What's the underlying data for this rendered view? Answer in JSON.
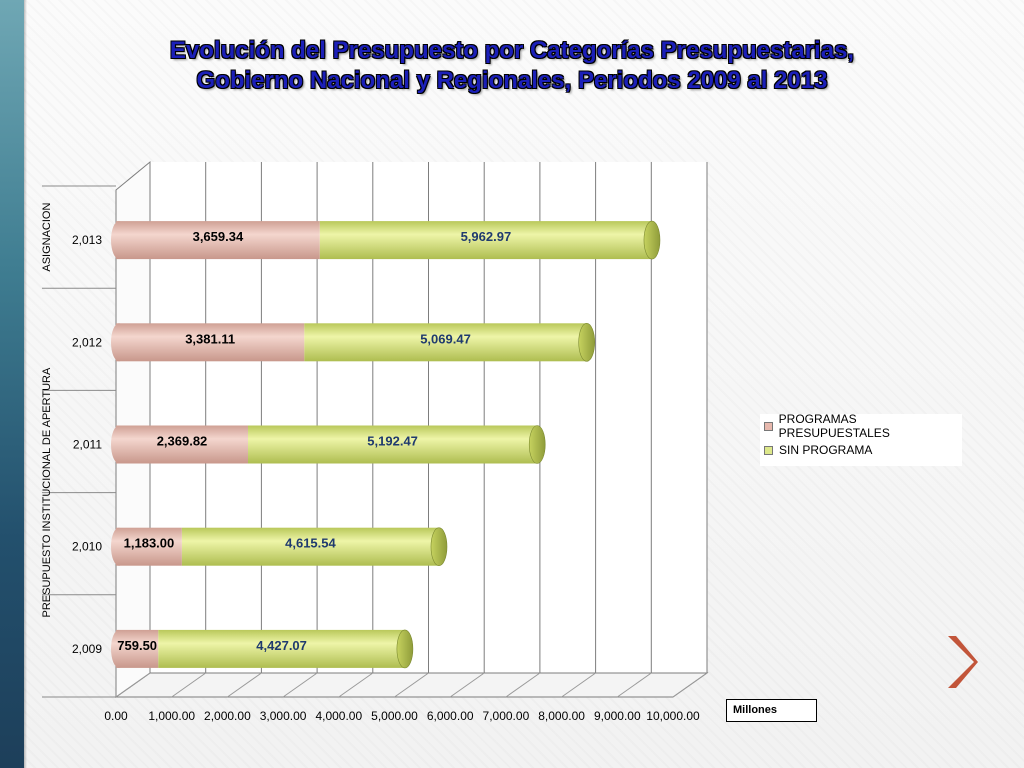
{
  "slide": {
    "title_line1": "Evolución del Presupuesto por Categorías Presupuestarias,",
    "title_line2": "Gobierno Nacional y Regionales, Periodos 2009 al 2013",
    "unit_label": "Millones",
    "next_icon": "chevron-right-icon"
  },
  "chart_data": {
    "type": "bar",
    "orientation": "horizontal",
    "stacked": true,
    "categories": [
      "2,009",
      "2,010",
      "2,011",
      "2,012",
      "2,013"
    ],
    "series": [
      {
        "name": "PROGRAMAS PRESUPUESTALES",
        "values": [
          759.5,
          1183.0,
          2369.82,
          3381.11,
          3659.34
        ],
        "labels": [
          "759.50",
          "1,183.00",
          "2,369.82",
          "3,381.11",
          "3,659.34"
        ],
        "color": "#e7b8ad",
        "label_color": "#000000"
      },
      {
        "name": "SIN PROGRAMA",
        "values": [
          4427.07,
          4615.54,
          5192.47,
          5069.47,
          5962.97
        ],
        "labels": [
          "4,427.07",
          "4,615.54",
          "5,192.47",
          "5,069.47",
          "5,962.97"
        ],
        "color": "#dde88a",
        "label_color": "#1f3a6e"
      }
    ],
    "group_labels": [
      {
        "label": "PRESUPUESTO INSTITUCIONAL DE APERTURA",
        "categories": [
          "2,009",
          "2,010",
          "2,011",
          "2,012"
        ]
      },
      {
        "label": "ASIGNACION",
        "categories": [
          "2,013"
        ]
      }
    ],
    "xaxis": {
      "ticks": [
        0,
        1000,
        2000,
        3000,
        4000,
        5000,
        6000,
        7000,
        8000,
        9000,
        10000
      ],
      "tick_labels": [
        "0.00",
        "1,000.00",
        "2,000.00",
        "3,000.00",
        "4,000.00",
        "5,000.00",
        "6,000.00",
        "7,000.00",
        "8,000.00",
        "9,000.00",
        "10,000.00"
      ],
      "range": [
        0,
        10000
      ]
    },
    "grid": true,
    "legend_position": "right"
  }
}
